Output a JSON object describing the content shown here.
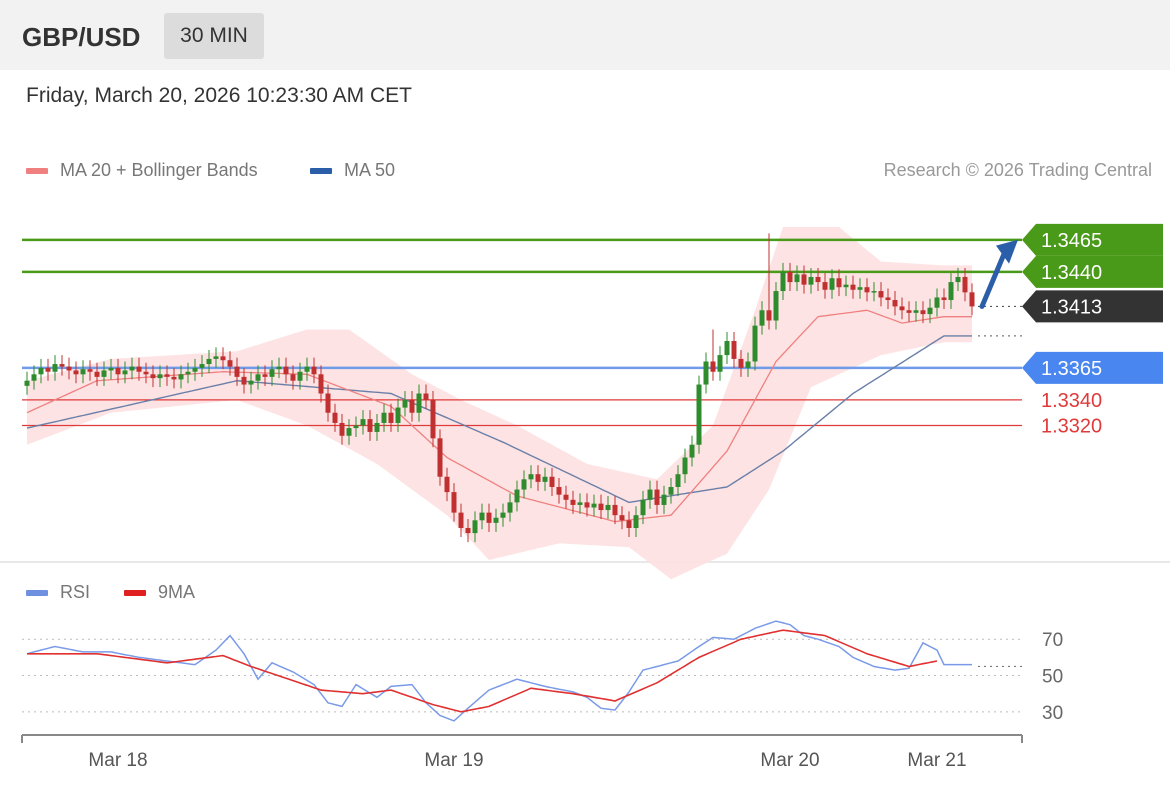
{
  "header": {
    "symbol": "GBP/USD",
    "timeframe": "30 MIN"
  },
  "datetime": "Friday, March 20, 2026 10:23:30 AM CET",
  "legend": {
    "ma20": "MA 20 + Bollinger Bands",
    "ma50": "MA 50",
    "rsi": "RSI",
    "rsi_ma": "9MA"
  },
  "copyright": "Research © 2026 Trading Central",
  "colors": {
    "resistance": "#4a9a1a",
    "support": "#6f9be8",
    "red_level": "#e03a3a",
    "current": "#333333",
    "band_fill": "#fde0e0",
    "ma20": "#f08080",
    "ma50": "#6a7fa8",
    "candle_up": "#2e8b2e",
    "candle_down": "#c03030",
    "arrow": "#2a5ea8",
    "rsi": "#7a9ae8",
    "rsi_ma": "#e03030"
  },
  "chart_data": [
    {
      "type": "candlestick",
      "levels": [
        {
          "value": 1.3465,
          "label": "1.3465",
          "kind": "resistance"
        },
        {
          "value": 1.344,
          "label": "1.3440",
          "kind": "resistance"
        },
        {
          "value": 1.3413,
          "label": "1.3413",
          "kind": "current"
        },
        {
          "value": 1.3365,
          "label": "1.3365",
          "kind": "support"
        },
        {
          "value": 1.334,
          "label": "1.3340",
          "kind": "red"
        },
        {
          "value": 1.332,
          "label": "1.3320",
          "kind": "red"
        }
      ],
      "ylim": [
        1.3215,
        1.35
      ],
      "x_ticks": [
        {
          "label": "Mar 18",
          "i": 13
        },
        {
          "label": "Mar 19",
          "i": 61
        },
        {
          "label": "Mar 20",
          "i": 109
        },
        {
          "label": "Mar 21",
          "i": 130
        }
      ],
      "x_count": 140,
      "ma50_anchors": [
        [
          0,
          1.3318
        ],
        [
          30,
          1.3355
        ],
        [
          52,
          1.3345
        ],
        [
          68,
          1.3307
        ],
        [
          86,
          1.326
        ],
        [
          100,
          1.3272
        ],
        [
          108,
          1.33
        ],
        [
          118,
          1.3345
        ],
        [
          131,
          1.339
        ]
      ],
      "ma20_anchors": [
        [
          0,
          1.333
        ],
        [
          10,
          1.3355
        ],
        [
          28,
          1.3362
        ],
        [
          40,
          1.336
        ],
        [
          52,
          1.3335
        ],
        [
          60,
          1.3295
        ],
        [
          70,
          1.3265
        ],
        [
          84,
          1.3245
        ],
        [
          92,
          1.325
        ],
        [
          100,
          1.33
        ],
        [
          107,
          1.337
        ],
        [
          113,
          1.3405
        ],
        [
          120,
          1.341
        ],
        [
          125,
          1.34
        ],
        [
          131,
          1.3405
        ]
      ],
      "band_upper": [
        [
          0,
          1.3355
        ],
        [
          12,
          1.3372
        ],
        [
          30,
          1.3378
        ],
        [
          40,
          1.3395
        ],
        [
          46,
          1.3395
        ],
        [
          55,
          1.336
        ],
        [
          62,
          1.334
        ],
        [
          70,
          1.332
        ],
        [
          80,
          1.329
        ],
        [
          90,
          1.3278
        ],
        [
          98,
          1.332
        ],
        [
          104,
          1.341
        ],
        [
          108,
          1.3475
        ],
        [
          116,
          1.3475
        ],
        [
          122,
          1.3448
        ],
        [
          131,
          1.3445
        ]
      ],
      "band_lower": [
        [
          0,
          1.3305
        ],
        [
          12,
          1.333
        ],
        [
          30,
          1.334
        ],
        [
          40,
          1.332
        ],
        [
          50,
          1.329
        ],
        [
          60,
          1.325
        ],
        [
          66,
          1.3215
        ],
        [
          76,
          1.3228
        ],
        [
          86,
          1.3225
        ],
        [
          92,
          1.32
        ],
        [
          100,
          1.322
        ],
        [
          106,
          1.327
        ],
        [
          112,
          1.335
        ],
        [
          122,
          1.3375
        ],
        [
          131,
          1.3385
        ]
      ],
      "closes": [
        1.3355,
        1.336,
        1.3365,
        1.3362,
        1.3368,
        1.3366,
        1.3363,
        1.336,
        1.3364,
        1.3362,
        1.3358,
        1.3363,
        1.3365,
        1.336,
        1.3363,
        1.3366,
        1.3362,
        1.336,
        1.3357,
        1.336,
        1.3358,
        1.3356,
        1.336,
        1.3362,
        1.3365,
        1.3368,
        1.3372,
        1.3374,
        1.3371,
        1.3366,
        1.3358,
        1.3352,
        1.3355,
        1.336,
        1.3358,
        1.3364,
        1.3366,
        1.336,
        1.3355,
        1.3362,
        1.3366,
        1.336,
        1.3345,
        1.333,
        1.3322,
        1.3312,
        1.3318,
        1.332,
        1.3325,
        1.3315,
        1.3322,
        1.333,
        1.3322,
        1.3334,
        1.334,
        1.333,
        1.3345,
        1.334,
        1.331,
        1.328,
        1.3268,
        1.3252,
        1.324,
        1.3236,
        1.3246,
        1.3252,
        1.3244,
        1.3248,
        1.3252,
        1.326,
        1.327,
        1.3278,
        1.3282,
        1.3276,
        1.328,
        1.3272,
        1.3266,
        1.3262,
        1.3258,
        1.326,
        1.3256,
        1.3259,
        1.3254,
        1.3258,
        1.325,
        1.3246,
        1.324,
        1.325,
        1.3262,
        1.327,
        1.3258,
        1.3266,
        1.3272,
        1.3282,
        1.3295,
        1.3305,
        1.3352,
        1.337,
        1.3362,
        1.3375,
        1.3386,
        1.3372,
        1.3365,
        1.337,
        1.3398,
        1.341,
        1.3402,
        1.3425,
        1.344,
        1.3432,
        1.3438,
        1.343,
        1.3436,
        1.3432,
        1.3426,
        1.3435,
        1.3428,
        1.343,
        1.3426,
        1.3428,
        1.3424,
        1.3425,
        1.342,
        1.3418,
        1.3413,
        1.341,
        1.3408,
        1.341,
        1.3407,
        1.3412,
        1.342,
        1.3418,
        1.3432,
        1.3436,
        1.3424,
        1.3413
      ],
      "spikes": [
        [
          106,
          1.347
        ],
        [
          98,
          1.3395
        ],
        [
          96,
          1.333
        ]
      ]
    },
    {
      "type": "line",
      "ylim": [
        20,
        85
      ],
      "yticks": [
        30,
        50,
        70
      ],
      "guide": 55,
      "rsi_anchors": [
        [
          0,
          62
        ],
        [
          4,
          66
        ],
        [
          8,
          63
        ],
        [
          12,
          63
        ],
        [
          16,
          60
        ],
        [
          20,
          58
        ],
        [
          24,
          56
        ],
        [
          27,
          64
        ],
        [
          29,
          72
        ],
        [
          31,
          62
        ],
        [
          33,
          48
        ],
        [
          35,
          57
        ],
        [
          38,
          52
        ],
        [
          41,
          45
        ],
        [
          43,
          35
        ],
        [
          45,
          33
        ],
        [
          47,
          45
        ],
        [
          50,
          38
        ],
        [
          52,
          44
        ],
        [
          55,
          45
        ],
        [
          57,
          35
        ],
        [
          59,
          28
        ],
        [
          61,
          25
        ],
        [
          63,
          32
        ],
        [
          66,
          42
        ],
        [
          70,
          48
        ],
        [
          74,
          44
        ],
        [
          78,
          41
        ],
        [
          80,
          38
        ],
        [
          82,
          32
        ],
        [
          84,
          31
        ],
        [
          86,
          41
        ],
        [
          88,
          53
        ],
        [
          91,
          56
        ],
        [
          93,
          58
        ],
        [
          96,
          66
        ],
        [
          98,
          71
        ],
        [
          101,
          70
        ],
        [
          104,
          76
        ],
        [
          107,
          80
        ],
        [
          109,
          78
        ],
        [
          111,
          72
        ],
        [
          113,
          70
        ],
        [
          116,
          66
        ],
        [
          118,
          60
        ],
        [
          121,
          55
        ],
        [
          124,
          53
        ],
        [
          126,
          54
        ],
        [
          128,
          68
        ],
        [
          130,
          64
        ],
        [
          131,
          56
        ]
      ],
      "ma_anchors": [
        [
          0,
          62
        ],
        [
          10,
          62
        ],
        [
          20,
          57
        ],
        [
          28,
          61
        ],
        [
          32,
          55
        ],
        [
          42,
          42
        ],
        [
          48,
          40
        ],
        [
          52,
          42
        ],
        [
          58,
          34
        ],
        [
          62,
          30
        ],
        [
          66,
          33
        ],
        [
          72,
          43
        ],
        [
          78,
          40
        ],
        [
          84,
          36
        ],
        [
          90,
          46
        ],
        [
          96,
          60
        ],
        [
          102,
          70
        ],
        [
          108,
          75
        ],
        [
          114,
          72
        ],
        [
          120,
          62
        ],
        [
          126,
          55
        ],
        [
          130,
          58
        ]
      ]
    }
  ]
}
